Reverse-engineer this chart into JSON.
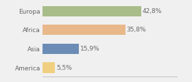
{
  "categories": [
    "Europa",
    "Africa",
    "Asia",
    "America"
  ],
  "values": [
    42.8,
    35.8,
    15.9,
    5.5
  ],
  "labels": [
    "42,8%",
    "35,8%",
    "15,9%",
    "5,5%"
  ],
  "bar_colors": [
    "#a8bc8a",
    "#e8b88a",
    "#6b8db5",
    "#f0d080"
  ],
  "background_color": "#f0f0f0",
  "xlim": [
    0,
    58
  ],
  "label_fontsize": 6.5,
  "tick_fontsize": 6.5,
  "bar_height": 0.55
}
